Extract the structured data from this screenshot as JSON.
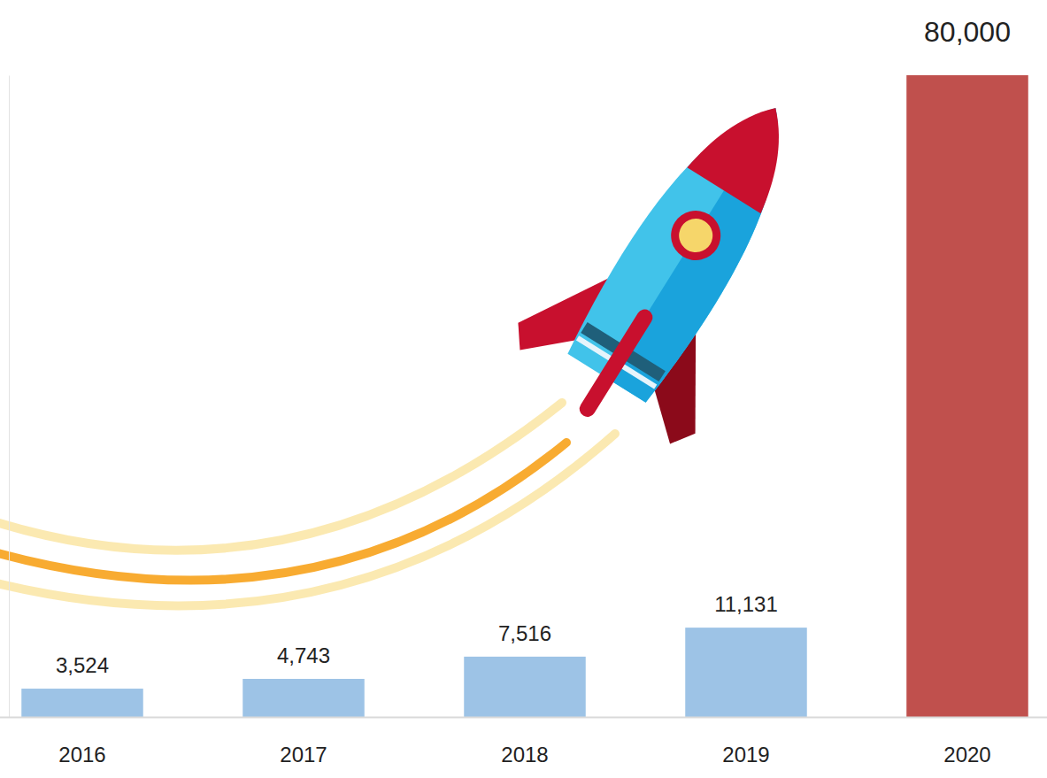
{
  "chart_data": {
    "type": "bar",
    "categories": [
      "2016",
      "2017",
      "2018",
      "2019",
      "2020"
    ],
    "values": [
      3524,
      4743,
      7516,
      11131,
      80000
    ],
    "value_labels": [
      "3,524",
      "4,743",
      "7,516",
      "11,131",
      "80,000"
    ],
    "colors": [
      "#9dc3e6",
      "#9dc3e6",
      "#9dc3e6",
      "#9dc3e6",
      "#c0504d"
    ],
    "ylim": [
      0,
      80000
    ],
    "data_labels": true,
    "tick_labels": "x",
    "grid": false
  }
}
